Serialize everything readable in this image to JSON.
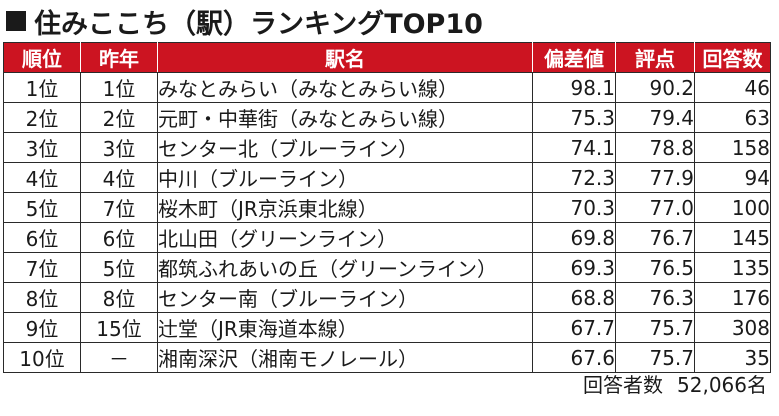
{
  "title": "住みここち（駅）ランキングTOP10",
  "table": {
    "headers": [
      "順位",
      "昨年",
      "駅名",
      "偏差値",
      "評点",
      "回答数"
    ],
    "rows": [
      {
        "rank": "1位",
        "prev": "1位",
        "station": "みなとみらい（みなとみらい線）",
        "deviation": "98.1",
        "score": "90.2",
        "responses": "46"
      },
      {
        "rank": "2位",
        "prev": "2位",
        "station": "元町・中華街（みなとみらい線）",
        "deviation": "75.3",
        "score": "79.4",
        "responses": "63"
      },
      {
        "rank": "3位",
        "prev": "3位",
        "station": "センター北（ブルーライン）",
        "deviation": "74.1",
        "score": "78.8",
        "responses": "158"
      },
      {
        "rank": "4位",
        "prev": "4位",
        "station": "中川（ブルーライン）",
        "deviation": "72.3",
        "score": "77.9",
        "responses": "94"
      },
      {
        "rank": "5位",
        "prev": "7位",
        "station": "桜木町（JR京浜東北線）",
        "deviation": "70.3",
        "score": "77.0",
        "responses": "100"
      },
      {
        "rank": "6位",
        "prev": "6位",
        "station": "北山田（グリーンライン）",
        "deviation": "69.8",
        "score": "76.7",
        "responses": "145"
      },
      {
        "rank": "7位",
        "prev": "5位",
        "station": "都筑ふれあいの丘（グリーンライン）",
        "deviation": "69.3",
        "score": "76.5",
        "responses": "135"
      },
      {
        "rank": "8位",
        "prev": "8位",
        "station": "センター南（ブルーライン）",
        "deviation": "68.8",
        "score": "76.3",
        "responses": "176"
      },
      {
        "rank": "9位",
        "prev": "15位",
        "station": "辻堂（JR東海道本線）",
        "deviation": "67.7",
        "score": "75.7",
        "responses": "308"
      },
      {
        "rank": "10位",
        "prev": "－",
        "station": "湘南深沢（湘南モノレール）",
        "deviation": "67.6",
        "score": "75.7",
        "responses": "35"
      }
    ]
  },
  "footer": {
    "label": "回答者数",
    "value": "52,066名"
  },
  "colors": {
    "header_bg": "#cc1421",
    "header_text": "#ffffff"
  }
}
